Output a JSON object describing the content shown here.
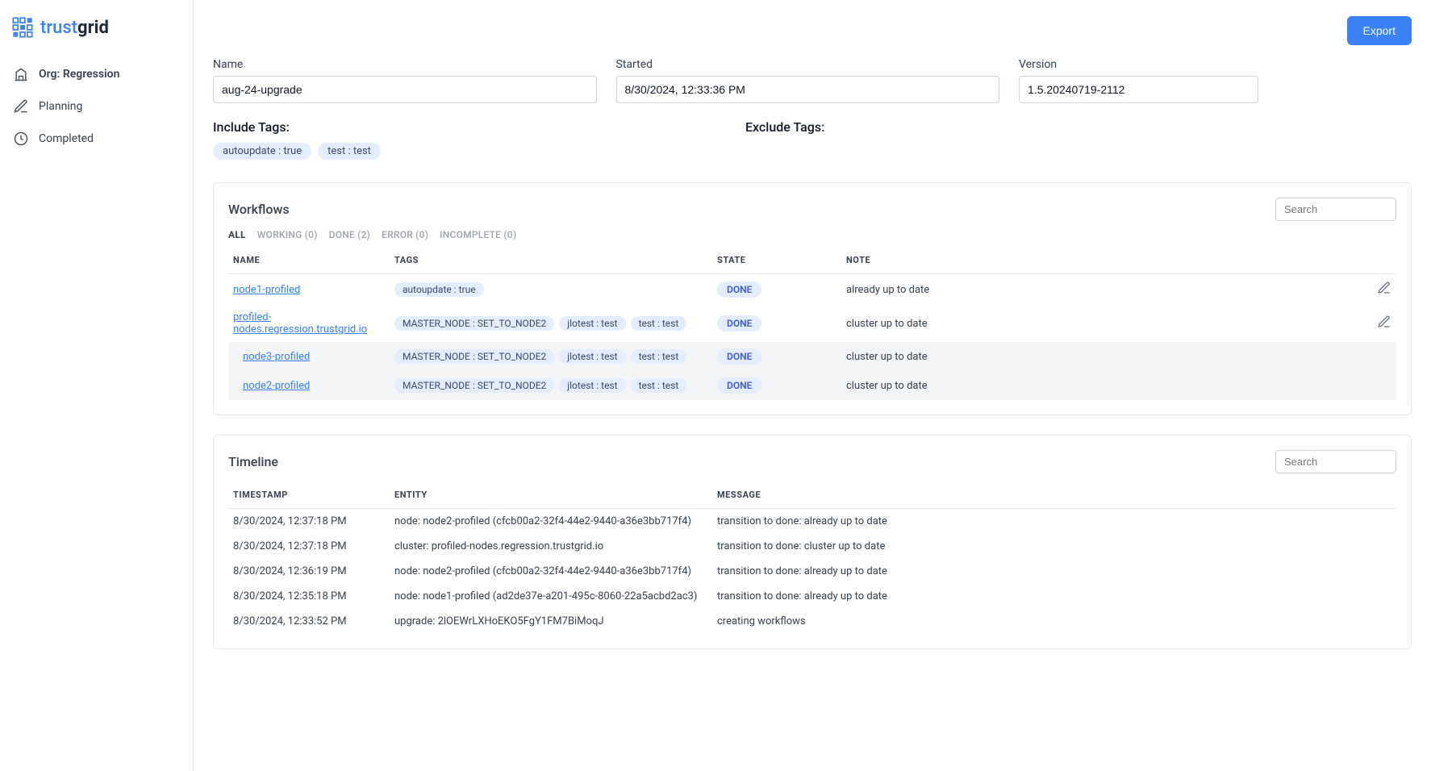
{
  "brand": {
    "part1": "trust",
    "part2": "grid"
  },
  "sidebar": {
    "org": "Org: Regression",
    "items": [
      {
        "label": "Planning"
      },
      {
        "label": "Completed"
      }
    ]
  },
  "topbar": {
    "export": "Export"
  },
  "fields": {
    "name_label": "Name",
    "name_value": "aug-24-upgrade",
    "started_label": "Started",
    "started_value": "8/30/2024, 12:33:36 PM",
    "version_label": "Version",
    "version_value": "1.5.20240719-2112"
  },
  "tags": {
    "include_title": "Include Tags:",
    "exclude_title": "Exclude Tags:",
    "include": [
      "autoupdate : true",
      "test : test"
    ],
    "exclude": []
  },
  "workflows": {
    "title": "Workflows",
    "search_placeholder": "Search",
    "filters": {
      "all": "ALL",
      "working": "WORKING (0)",
      "done": "DONE (2)",
      "error": "ERROR (0)",
      "incomplete": "INCOMPLETE (0)"
    },
    "headers": {
      "name": "NAME",
      "tags": "TAGS",
      "state": "STATE",
      "note": "NOTE"
    },
    "rows": [
      {
        "name": "node1-profiled",
        "tags": [
          "autoupdate : true"
        ],
        "state": "DONE",
        "note": "already up to date",
        "indent": false,
        "shaded": false,
        "editable": true
      },
      {
        "name": "profiled-nodes.regression.trustgrid.io",
        "tags": [
          "MASTER_NODE : SET_TO_NODE2",
          "jlotest : test",
          "test : test"
        ],
        "state": "DONE",
        "note": "cluster up to date",
        "indent": false,
        "shaded": false,
        "editable": true
      },
      {
        "name": "node3-profiled",
        "tags": [
          "MASTER_NODE : SET_TO_NODE2",
          "jlotest : test",
          "test : test"
        ],
        "state": "DONE",
        "note": "cluster up to date",
        "indent": true,
        "shaded": true,
        "editable": false
      },
      {
        "name": "node2-profiled",
        "tags": [
          "MASTER_NODE : SET_TO_NODE2",
          "jlotest : test",
          "test : test"
        ],
        "state": "DONE",
        "note": "cluster up to date",
        "indent": true,
        "shaded": true,
        "editable": false
      }
    ]
  },
  "timeline": {
    "title": "Timeline",
    "search_placeholder": "Search",
    "headers": {
      "ts": "TIMESTAMP",
      "entity": "ENTITY",
      "message": "MESSAGE"
    },
    "rows": [
      {
        "ts": "8/30/2024, 12:37:18 PM",
        "entity": "node: node2-profiled (cfcb00a2-32f4-44e2-9440-a36e3bb717f4)",
        "message": "transition to done: already up to date"
      },
      {
        "ts": "8/30/2024, 12:37:18 PM",
        "entity": "cluster: profiled-nodes.regression.trustgrid.io",
        "message": "transition to done: cluster up to date"
      },
      {
        "ts": "8/30/2024, 12:36:19 PM",
        "entity": "node: node2-profiled (cfcb00a2-32f4-44e2-9440-a36e3bb717f4)",
        "message": "transition to done: already up to date"
      },
      {
        "ts": "8/30/2024, 12:35:18 PM",
        "entity": "node: node1-profiled (ad2de37e-a201-495c-8060-22a5acbd2ac3)",
        "message": "transition to done: already up to date"
      },
      {
        "ts": "8/30/2024, 12:33:52 PM",
        "entity": "upgrade: 2lOEWrLXHoEKO5FgY1FM7BiMoqJ",
        "message": "creating workflows"
      }
    ]
  }
}
